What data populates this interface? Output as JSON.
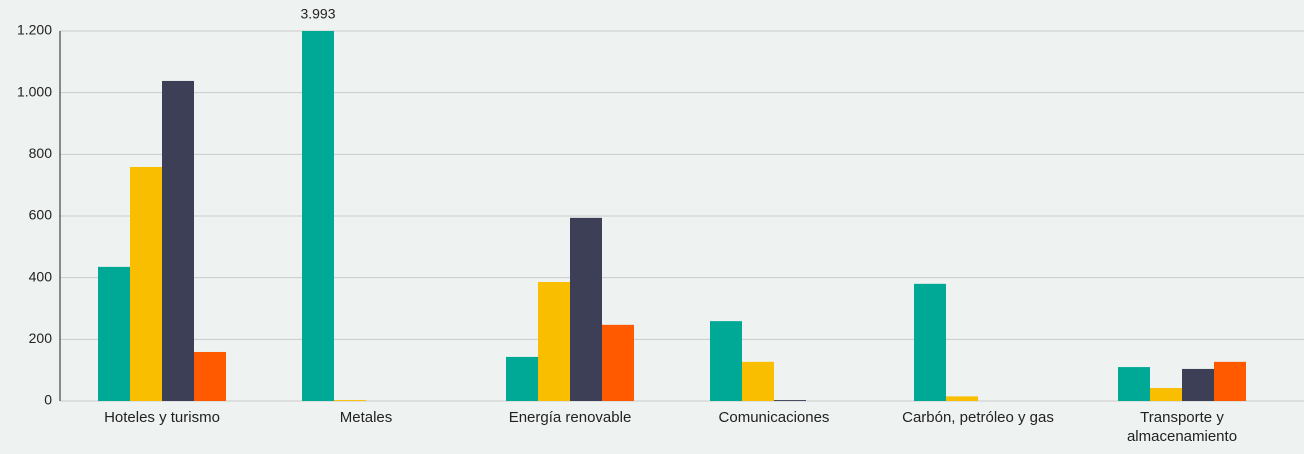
{
  "chart_data": {
    "type": "bar",
    "categories": [
      "Hoteles y turismo",
      "Metales",
      "Energía renovable",
      "Comunicaciones",
      "Carbón, petróleo y gas",
      "Transporte y almacenamiento"
    ],
    "series": [
      {
        "color": "#00a896",
        "values": [
          435,
          3993,
          143,
          259,
          380,
          110
        ],
        "value_labels": [
          null,
          "3.993",
          null,
          null,
          null,
          null
        ]
      },
      {
        "color": "#f9be00",
        "values": [
          759,
          3,
          386,
          127,
          15,
          42
        ]
      },
      {
        "color": "#3d3f56",
        "values": [
          1038,
          0,
          594,
          3,
          0,
          104
        ]
      },
      {
        "color": "#ff5a00",
        "values": [
          159,
          0,
          247,
          0,
          0,
          127
        ]
      }
    ],
    "ylim": [
      0,
      1200
    ],
    "yticks": [
      0,
      200,
      400,
      600,
      800,
      {
        "value": 1000,
        "label": "1.000"
      },
      {
        "value": 1200,
        "label": "1.200"
      }
    ],
    "grid": true
  }
}
